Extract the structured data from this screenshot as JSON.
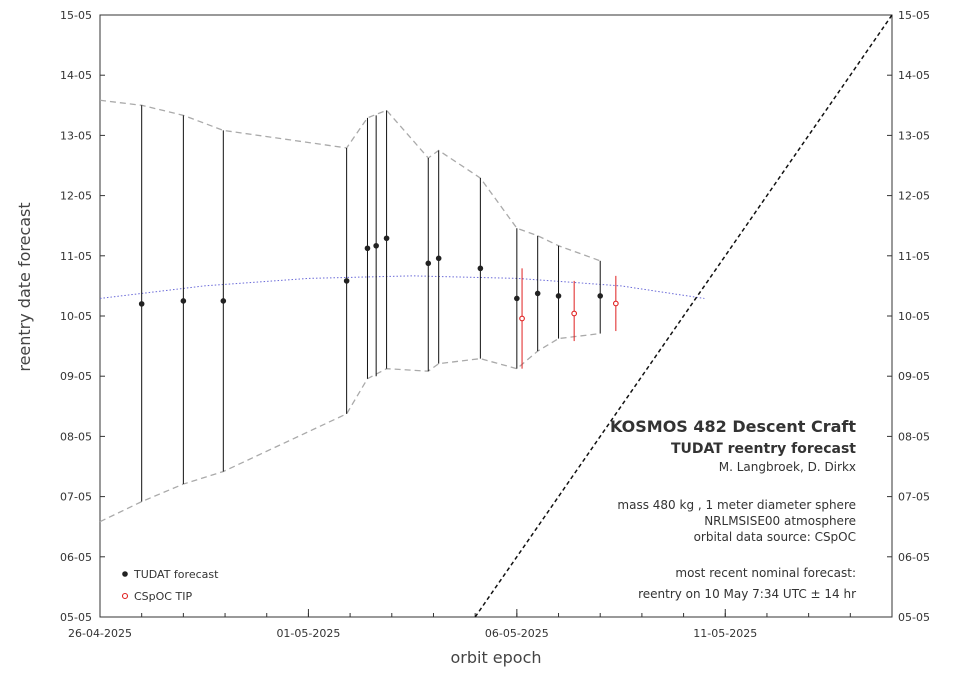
{
  "chart_data": {
    "type": "scatter",
    "xlabel": "orbit epoch",
    "ylabel": "reentry date forecast",
    "x_ticks": [
      "26-04-2025",
      "01-05-2025",
      "06-05-2025",
      "11-05-2025"
    ],
    "y_ticks": [
      "05-05",
      "06-05",
      "07-05",
      "08-05",
      "09-05",
      "10-05",
      "11-05",
      "12-05",
      "13-05",
      "14-05",
      "15-05"
    ],
    "xlim": [
      "2025-04-26",
      "2025-05-15"
    ],
    "ylim": [
      "2025-05-05",
      "2025-05-15"
    ],
    "annotation": {
      "title": "KOSMOS 482 Descent Craft",
      "subtitle": "TUDAT reentry forecast",
      "authors": "M. Langbroek, D. Dirkx",
      "line1": "mass 480 kg , 1 meter diameter sphere",
      "line2": "NRLMSISE00 atmosphere",
      "line3": "orbital data source:  CSpOC",
      "line4": "most recent nominal forecast:",
      "line5": "reentry on 10 May 7:34 UTC ± 14 hr"
    },
    "legend": {
      "position": "bottom-left",
      "tudat_label": "TUDAT forecast",
      "cspoc_label": "CSpOC TIP"
    },
    "colors": {
      "tudat": "#222222",
      "cspoc": "#e02020",
      "envelope": "#aaaaaa",
      "trend": "#6a6ad8",
      "diagonal": "#111111"
    },
    "tudat_forecast": [
      {
        "x": "2025-04-27 00:00",
        "y": "2025-05-10 04:50",
        "low": "2025-05-06 22:00",
        "high": "2025-05-13 12:00"
      },
      {
        "x": "2025-04-28 00:00",
        "y": "2025-05-10 06:00",
        "low": "2025-05-07 05:00",
        "high": "2025-05-13 08:00"
      },
      {
        "x": "2025-04-28 23:00",
        "y": "2025-05-10 06:00",
        "low": "2025-05-07 10:00",
        "high": "2025-05-13 02:00"
      },
      {
        "x": "2025-05-01 22:00",
        "y": "2025-05-10 14:00",
        "low": "2025-05-08 09:00",
        "high": "2025-05-12 19:00"
      },
      {
        "x": "2025-05-02 10:00",
        "y": "2025-05-11 03:00",
        "low": "2025-05-08 23:00",
        "high": "2025-05-13 07:00"
      },
      {
        "x": "2025-05-02 15:00",
        "y": "2025-05-11 04:00",
        "low": "2025-05-09 00:00",
        "high": "2025-05-13 08:00"
      },
      {
        "x": "2025-05-02 21:00",
        "y": "2025-05-11 07:00",
        "low": "2025-05-09 03:00",
        "high": "2025-05-13 10:00"
      },
      {
        "x": "2025-05-03 21:00",
        "y": "2025-05-10 21:00",
        "low": "2025-05-09 02:00",
        "high": "2025-05-12 15:00"
      },
      {
        "x": "2025-05-04 03:00",
        "y": "2025-05-10 23:00",
        "low": "2025-05-09 05:00",
        "high": "2025-05-12 18:00"
      },
      {
        "x": "2025-05-05 03:00",
        "y": "2025-05-10 19:00",
        "low": "2025-05-09 07:00",
        "high": "2025-05-12 07:00"
      },
      {
        "x": "2025-05-06 00:00",
        "y": "2025-05-10 07:00",
        "low": "2025-05-09 03:00",
        "high": "2025-05-11 11:00"
      },
      {
        "x": "2025-05-06 12:00",
        "y": "2025-05-10 09:00",
        "low": "2025-05-09 10:00",
        "high": "2025-05-11 08:00"
      },
      {
        "x": "2025-05-07 00:00",
        "y": "2025-05-10 08:00",
        "low": "2025-05-09 15:00",
        "high": "2025-05-11 04:00"
      },
      {
        "x": "2025-05-08 00:00",
        "y": "2025-05-10 08:00",
        "low": "2025-05-09 17:00",
        "high": "2025-05-10 22:00"
      }
    ],
    "cspoc_tip": [
      {
        "x": "2025-05-06 03:00",
        "y": "2025-05-09 23:00",
        "low": "2025-05-09 03:00",
        "high": "2025-05-10 19:00"
      },
      {
        "x": "2025-05-07 09:00",
        "y": "2025-05-10 01:00",
        "low": "2025-05-09 14:00",
        "high": "2025-05-10 14:00"
      },
      {
        "x": "2025-05-08 09:00",
        "y": "2025-05-10 05:00",
        "low": "2025-05-09 18:00",
        "high": "2025-05-10 16:00"
      }
    ],
    "nominal_trend": [
      {
        "x": "2025-04-26 00:00",
        "y": "2025-05-10 07:00"
      },
      {
        "x": "2025-04-28 12:00",
        "y": "2025-05-10 12:00"
      },
      {
        "x": "2025-05-01 00:00",
        "y": "2025-05-10 15:00"
      },
      {
        "x": "2025-05-03 12:00",
        "y": "2025-05-10 16:00"
      },
      {
        "x": "2025-05-06 00:00",
        "y": "2025-05-10 15:00"
      },
      {
        "x": "2025-05-08 12:00",
        "y": "2025-05-10 12:00"
      },
      {
        "x": "2025-05-10 12:00",
        "y": "2025-05-10 07:00"
      }
    ],
    "envelope_upper": [
      {
        "x": "2025-04-26 00:00",
        "y": "2025-05-13 14:00"
      },
      {
        "x": "2025-04-27 00:00",
        "y": "2025-05-13 12:00"
      },
      {
        "x": "2025-04-28 00:00",
        "y": "2025-05-13 08:00"
      },
      {
        "x": "2025-04-28 23:00",
        "y": "2025-05-13 02:00"
      },
      {
        "x": "2025-05-01 22:00",
        "y": "2025-05-12 19:00"
      },
      {
        "x": "2025-05-02 10:00",
        "y": "2025-05-13 07:00"
      },
      {
        "x": "2025-05-02 21:00",
        "y": "2025-05-13 10:00"
      },
      {
        "x": "2025-05-03 21:00",
        "y": "2025-05-12 15:00"
      },
      {
        "x": "2025-05-04 03:00",
        "y": "2025-05-12 18:00"
      },
      {
        "x": "2025-05-05 03:00",
        "y": "2025-05-12 07:00"
      },
      {
        "x": "2025-05-06 00:00",
        "y": "2025-05-11 11:00"
      },
      {
        "x": "2025-05-06 12:00",
        "y": "2025-05-11 08:00"
      },
      {
        "x": "2025-05-07 00:00",
        "y": "2025-05-11 04:00"
      },
      {
        "x": "2025-05-08 00:00",
        "y": "2025-05-10 22:00"
      }
    ],
    "envelope_lower": [
      {
        "x": "2025-04-26 00:00",
        "y": "2025-05-06 14:00"
      },
      {
        "x": "2025-04-27 00:00",
        "y": "2025-05-06 22:00"
      },
      {
        "x": "2025-04-28 00:00",
        "y": "2025-05-07 05:00"
      },
      {
        "x": "2025-04-28 23:00",
        "y": "2025-05-07 10:00"
      },
      {
        "x": "2025-05-01 22:00",
        "y": "2025-05-08 09:00"
      },
      {
        "x": "2025-05-02 10:00",
        "y": "2025-05-08 23:00"
      },
      {
        "x": "2025-05-02 21:00",
        "y": "2025-05-09 03:00"
      },
      {
        "x": "2025-05-03 21:00",
        "y": "2025-05-09 02:00"
      },
      {
        "x": "2025-05-04 03:00",
        "y": "2025-05-09 05:00"
      },
      {
        "x": "2025-05-05 03:00",
        "y": "2025-05-09 07:00"
      },
      {
        "x": "2025-05-06 00:00",
        "y": "2025-05-09 03:00"
      },
      {
        "x": "2025-05-06 12:00",
        "y": "2025-05-09 10:00"
      },
      {
        "x": "2025-05-07 00:00",
        "y": "2025-05-09 15:00"
      },
      {
        "x": "2025-05-08 00:00",
        "y": "2025-05-09 17:00"
      }
    ],
    "diagonal_reference": [
      {
        "x": "2025-05-05 00:00",
        "y": "2025-05-05 00:00"
      },
      {
        "x": "2025-05-15 00:00",
        "y": "2025-05-15 00:00"
      }
    ]
  }
}
